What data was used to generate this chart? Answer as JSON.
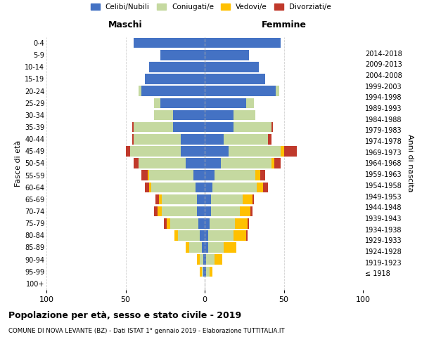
{
  "age_groups": [
    "100+",
    "95-99",
    "90-94",
    "85-89",
    "80-84",
    "75-79",
    "70-74",
    "65-69",
    "60-64",
    "55-59",
    "50-54",
    "45-49",
    "40-44",
    "35-39",
    "30-34",
    "25-29",
    "20-24",
    "15-19",
    "10-14",
    "5-9",
    "0-4"
  ],
  "birth_years": [
    "≤ 1918",
    "1919-1923",
    "1924-1928",
    "1929-1933",
    "1934-1938",
    "1939-1943",
    "1944-1948",
    "1949-1953",
    "1954-1958",
    "1959-1963",
    "1964-1968",
    "1969-1973",
    "1974-1978",
    "1979-1983",
    "1984-1988",
    "1989-1993",
    "1994-1998",
    "1999-2003",
    "2004-2008",
    "2009-2013",
    "2014-2018"
  ],
  "males": {
    "celibi": [
      0,
      1,
      1,
      2,
      3,
      4,
      5,
      5,
      6,
      7,
      12,
      15,
      15,
      20,
      20,
      28,
      40,
      38,
      35,
      28,
      45
    ],
    "coniugati": [
      0,
      1,
      2,
      8,
      14,
      18,
      22,
      22,
      28,
      28,
      30,
      32,
      30,
      25,
      12,
      4,
      2,
      0,
      0,
      0,
      0
    ],
    "vedovi": [
      0,
      1,
      2,
      2,
      2,
      2,
      3,
      2,
      1,
      1,
      0,
      0,
      0,
      0,
      0,
      0,
      0,
      0,
      0,
      0,
      0
    ],
    "divorziati": [
      0,
      0,
      0,
      0,
      0,
      2,
      2,
      2,
      3,
      4,
      3,
      3,
      1,
      1,
      0,
      0,
      0,
      0,
      0,
      0,
      0
    ]
  },
  "females": {
    "nubili": [
      0,
      1,
      1,
      2,
      2,
      3,
      4,
      4,
      5,
      6,
      10,
      15,
      12,
      18,
      18,
      26,
      45,
      38,
      34,
      28,
      48
    ],
    "coniugate": [
      0,
      2,
      5,
      10,
      16,
      16,
      18,
      20,
      28,
      26,
      32,
      33,
      28,
      24,
      14,
      5,
      2,
      0,
      0,
      0,
      0
    ],
    "vedove": [
      0,
      2,
      5,
      8,
      8,
      8,
      7,
      6,
      4,
      3,
      2,
      2,
      0,
      0,
      0,
      0,
      0,
      0,
      0,
      0,
      0
    ],
    "divorziate": [
      0,
      0,
      0,
      0,
      1,
      1,
      1,
      1,
      3,
      3,
      4,
      8,
      2,
      1,
      0,
      0,
      0,
      0,
      0,
      0,
      0
    ]
  },
  "colors": {
    "celibi": "#4472c4",
    "coniugati": "#c5d9a0",
    "vedovi": "#ffc000",
    "divorziati": "#c0392b"
  },
  "xlim": 100,
  "title": "Popolazione per età, sesso e stato civile - 2019",
  "subtitle": "COMUNE DI NOVA LEVANTE (BZ) - Dati ISTAT 1° gennaio 2019 - Elaborazione TUTTITALIA.IT",
  "xlabel_left": "Maschi",
  "xlabel_right": "Femmine",
  "ylabel_left": "Fasce di età",
  "ylabel_right": "Anni di nascita",
  "background_color": "#ffffff",
  "grid_color": "#cccccc"
}
